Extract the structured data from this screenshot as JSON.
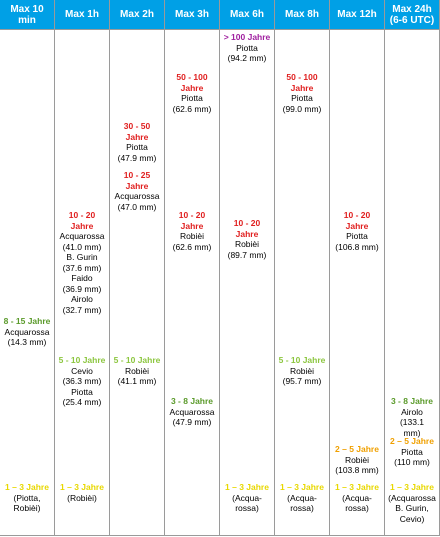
{
  "columns": [
    {
      "header": [
        "Max 10",
        "min"
      ],
      "entries": [
        {
          "period": "8 - 15 Jahre",
          "color": "#5a9a2a",
          "lines": [
            "Acquarossa",
            "(14.3 mm)"
          ]
        },
        {
          "period": "1 – 3 Jahre",
          "color": "#e8d800",
          "lines": [
            "(Piotta,",
            "Robièi)"
          ]
        }
      ]
    },
    {
      "header": [
        "Max 1h"
      ],
      "entries": [
        {
          "period": "10 - 20 Jahre",
          "color": "#e02020",
          "lines": [
            "Acquarossa",
            "(41.0 mm)",
            "B. Gurin",
            "(37.6 mm)",
            "Faido",
            "(36.9 mm)",
            "Airolo",
            "(32.7 mm)"
          ]
        },
        {
          "period": "5 - 10 Jahre",
          "color": "#8cc63f",
          "lines": [
            "Cevio",
            "(36.3 mm)",
            "Piotta",
            "(25.4 mm)"
          ]
        },
        {
          "period": "1 – 3 Jahre",
          "color": "#e8d800",
          "lines": [
            "(Robièi)"
          ]
        }
      ]
    },
    {
      "header": [
        "Max 2h"
      ],
      "entries": [
        {
          "period": "30 - 50 Jahre",
          "color": "#e02020",
          "lines": [
            "Piotta",
            "(47.9 mm)"
          ]
        },
        {
          "period": "10 - 25 Jahre",
          "color": "#e02020",
          "lines": [
            "Acquarossa",
            "(47.0 mm)"
          ]
        },
        {
          "period": "5 - 10 Jahre",
          "color": "#8cc63f",
          "lines": [
            "Robièi",
            "(41.1 mm)"
          ]
        }
      ]
    },
    {
      "header": [
        "Max 3h"
      ],
      "entries": [
        {
          "period": "50 - 100 Jahre",
          "color": "#e02020",
          "lines": [
            "Piotta",
            "(62.6 mm)"
          ]
        },
        {
          "period": "10 - 20 Jahre",
          "color": "#e02020",
          "lines": [
            "Robièi",
            "(62.6 mm)"
          ]
        },
        {
          "period": "3 - 8 Jahre",
          "color": "#5a9a2a",
          "lines": [
            "Acquarossa",
            "(47.9 mm)"
          ]
        }
      ]
    },
    {
      "header": [
        "Max 6h"
      ],
      "entries": [
        {
          "period": "> 100 Jahre",
          "color": "#a020a0",
          "lines": [
            "Piotta",
            "(94.2 mm)"
          ]
        },
        {
          "period": "10 - 20 Jahre",
          "color": "#e02020",
          "lines": [
            "Robièi",
            "(89.7 mm)"
          ]
        },
        {
          "period": "1 – 3 Jahre",
          "color": "#e8d800",
          "lines": [
            "(Acqua-",
            "rossa)"
          ]
        }
      ]
    },
    {
      "header": [
        "Max 8h"
      ],
      "entries": [
        {
          "period": "50 - 100 Jahre",
          "color": "#e02020",
          "lines": [
            "Piotta",
            "(99.0 mm)"
          ]
        },
        {
          "period": "5 - 10 Jahre",
          "color": "#8cc63f",
          "lines": [
            "Robièi",
            "(95.7 mm)"
          ]
        },
        {
          "period": "1 – 3 Jahre",
          "color": "#e8d800",
          "lines": [
            "(Acqua-",
            "rossa)"
          ]
        }
      ]
    },
    {
      "header": [
        "Max 12h"
      ],
      "entries": [
        {
          "period": "10 - 20 Jahre",
          "color": "#e02020",
          "lines": [
            "Piotta",
            "(106.8 mm)"
          ]
        },
        {
          "period": "2 – 5 Jahre",
          "color": "#f0a000",
          "lines": [
            "Robièi",
            "(103.8 mm)"
          ]
        },
        {
          "period": "1 – 3 Jahre",
          "color": "#e8d800",
          "lines": [
            "(Acqua-",
            "rossa)"
          ]
        }
      ]
    },
    {
      "header": [
        "Max 24h",
        "(6-6 UTC)"
      ],
      "entries": [
        {
          "period": "3 - 8 Jahre",
          "color": "#5a9a2a",
          "lines": [
            "Airolo",
            "(133.1",
            "mm)"
          ]
        },
        {
          "period": "2 – 5 Jahre",
          "color": "#f0a000",
          "lines": [
            "Piotta",
            "(110 mm)"
          ]
        },
        {
          "period": "1 – 3 Jahre",
          "color": "#e8d800",
          "lines": [
            "(Acquarossa",
            "B. Gurin,",
            "Cevio)"
          ]
        }
      ]
    }
  ]
}
